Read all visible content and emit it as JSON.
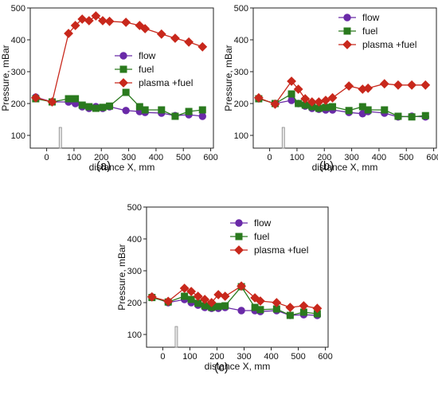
{
  "chart_data": [
    {
      "type": "line",
      "panel_label": "(a)",
      "xlabel": "distance X, mm",
      "ylabel": "Pressure, mBar",
      "xlim": [
        -60,
        610
      ],
      "ylim": [
        60,
        500
      ],
      "xticks": [
        0,
        100,
        200,
        300,
        400,
        500,
        600
      ],
      "yticks": [
        100,
        200,
        300,
        400,
        500
      ],
      "legend": "right",
      "marker_bar": {
        "x": 50,
        "y_low": 60,
        "y_high": 125
      },
      "series": [
        {
          "name": "flow",
          "color": "#6a2aa8",
          "marker": "circle",
          "x": [
            -40,
            20,
            80,
            105,
            130,
            155,
            180,
            205,
            230,
            290,
            340,
            360,
            420,
            470,
            520,
            570
          ],
          "y": [
            220,
            205,
            205,
            200,
            190,
            185,
            190,
            185,
            190,
            178,
            175,
            172,
            170,
            162,
            165,
            160
          ]
        },
        {
          "name": "fuel",
          "color": "#2a7a1e",
          "marker": "square",
          "x": [
            -40,
            20,
            80,
            105,
            130,
            155,
            180,
            205,
            230,
            290,
            340,
            360,
            420,
            470,
            520,
            570
          ],
          "y": [
            215,
            205,
            215,
            215,
            195,
            190,
            185,
            188,
            192,
            235,
            190,
            180,
            180,
            160,
            175,
            180
          ]
        },
        {
          "name": "plasma +fuel",
          "color": "#c8281c",
          "marker": "diamond",
          "x": [
            -40,
            20,
            80,
            105,
            130,
            155,
            180,
            205,
            230,
            290,
            340,
            360,
            420,
            470,
            520,
            570
          ],
          "y": [
            218,
            205,
            420,
            445,
            465,
            460,
            475,
            460,
            458,
            455,
            445,
            435,
            418,
            405,
            393,
            378
          ]
        }
      ]
    },
    {
      "type": "line",
      "panel_label": "(b)",
      "xlabel": "distance X, mm",
      "ylabel": "Pressure, mBar",
      "xlim": [
        -60,
        610
      ],
      "ylim": [
        60,
        500
      ],
      "xticks": [
        0,
        100,
        200,
        300,
        400,
        500,
        600
      ],
      "yticks": [
        100,
        200,
        300,
        400,
        500
      ],
      "legend": "top-right",
      "marker_bar": {
        "x": 50,
        "y_low": 60,
        "y_high": 125
      },
      "series": [
        {
          "name": "flow",
          "color": "#6a2aa8",
          "marker": "circle",
          "x": [
            -40,
            20,
            80,
            105,
            130,
            155,
            180,
            205,
            230,
            290,
            340,
            360,
            420,
            470,
            520,
            570
          ],
          "y": [
            215,
            200,
            210,
            200,
            192,
            185,
            182,
            180,
            180,
            172,
            168,
            175,
            170,
            158,
            160,
            158
          ]
        },
        {
          "name": "fuel",
          "color": "#2a7a1e",
          "marker": "square",
          "x": [
            -40,
            20,
            80,
            105,
            130,
            155,
            180,
            205,
            230,
            290,
            340,
            360,
            420,
            470,
            520,
            570
          ],
          "y": [
            215,
            200,
            230,
            200,
            195,
            190,
            185,
            188,
            190,
            178,
            190,
            180,
            180,
            160,
            158,
            162
          ]
        },
        {
          "name": "plasma +fuel",
          "color": "#c8281c",
          "marker": "diamond",
          "x": [
            -40,
            20,
            80,
            105,
            130,
            155,
            180,
            205,
            230,
            290,
            340,
            360,
            420,
            470,
            520,
            570
          ],
          "y": [
            218,
            198,
            270,
            245,
            215,
            205,
            205,
            210,
            218,
            255,
            245,
            248,
            262,
            258,
            258,
            258
          ]
        }
      ]
    },
    {
      "type": "line",
      "panel_label": "(c)",
      "xlabel": "distance X, mm",
      "ylabel": "Pressure, mBar",
      "xlim": [
        -60,
        610
      ],
      "ylim": [
        60,
        500
      ],
      "xticks": [
        0,
        100,
        200,
        300,
        400,
        500,
        600
      ],
      "yticks": [
        100,
        200,
        300,
        400,
        500
      ],
      "legend": "top-right",
      "marker_bar": {
        "x": 50,
        "y_low": 60,
        "y_high": 125
      },
      "series": [
        {
          "name": "flow",
          "color": "#6a2aa8",
          "marker": "circle",
          "x": [
            -40,
            20,
            80,
            105,
            130,
            155,
            180,
            205,
            230,
            290,
            340,
            360,
            420,
            470,
            520,
            570
          ],
          "y": [
            218,
            200,
            210,
            200,
            192,
            185,
            182,
            182,
            185,
            175,
            175,
            172,
            175,
            160,
            162,
            160
          ]
        },
        {
          "name": "fuel",
          "color": "#2a7a1e",
          "marker": "square",
          "x": [
            -40,
            20,
            80,
            105,
            130,
            155,
            180,
            205,
            230,
            290,
            340,
            360,
            420,
            470,
            520,
            570
          ],
          "y": [
            216,
            202,
            220,
            210,
            198,
            190,
            185,
            188,
            190,
            250,
            185,
            178,
            180,
            160,
            170,
            165
          ]
        },
        {
          "name": "plasma +fuel",
          "color": "#c8281c",
          "marker": "diamond",
          "x": [
            -40,
            20,
            80,
            105,
            130,
            155,
            180,
            205,
            230,
            290,
            340,
            360,
            420,
            470,
            520,
            570
          ],
          "y": [
            218,
            204,
            245,
            235,
            220,
            210,
            200,
            225,
            220,
            252,
            215,
            205,
            200,
            185,
            190,
            182
          ]
        }
      ]
    }
  ]
}
